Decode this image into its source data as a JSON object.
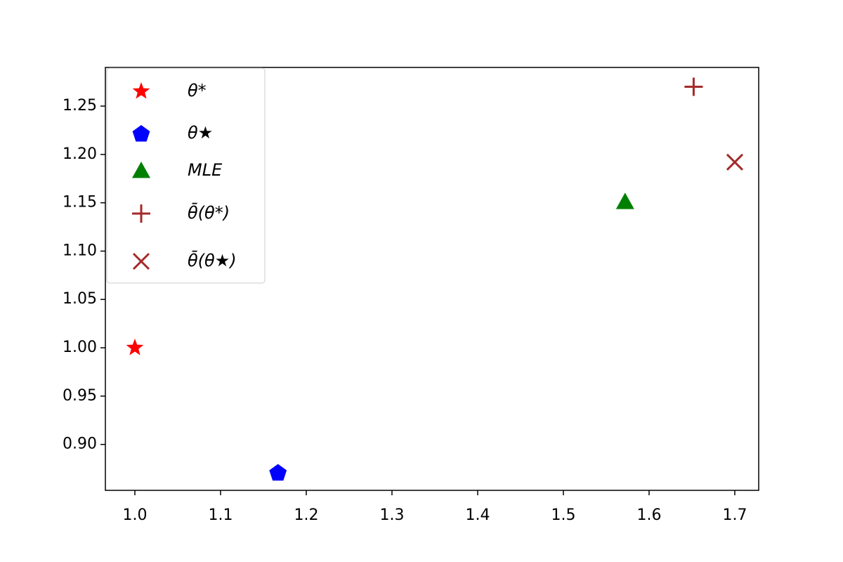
{
  "chart_data": {
    "type": "scatter",
    "xlim": [
      0.9656,
      1.7279
    ],
    "ylim": [
      0.8525,
      1.29
    ],
    "xticks": [
      {
        "value": 1,
        "label": "1.0"
      },
      1.1,
      1.2,
      1.3,
      1.4,
      1.5,
      1.6,
      1.7
    ],
    "yticks": [
      {
        "value": 0.9,
        "label": "0.90"
      },
      0.95,
      {
        "value": 1,
        "label": "1.00"
      },
      1.05,
      {
        "value": 1.1,
        "label": "1.10"
      },
      1.15,
      {
        "value": 1.2,
        "label": "1.20"
      },
      1.25
    ],
    "legend": "upper left",
    "series": [
      {
        "name": "θ*",
        "color": "#ff0000",
        "marker": "star",
        "x": [
          1.0
        ],
        "y": [
          1.0
        ]
      },
      {
        "name": "θ★",
        "color": "#0000ff",
        "marker": "pentagon",
        "x": [
          1.167
        ],
        "y": [
          0.871
        ]
      },
      {
        "name": "MLE",
        "color": "#008000",
        "marker": "triangle",
        "x": [
          1.572
        ],
        "y": [
          1.151
        ]
      },
      {
        "name": "θ̄(θ*)",
        "color": "#a52a2a",
        "marker": "plus",
        "x": [
          1.652
        ],
        "y": [
          1.27
        ]
      },
      {
        "name": "θ̄(θ★)",
        "color": "#a52a2a",
        "marker": "x",
        "x": [
          1.7
        ],
        "y": [
          1.192
        ]
      }
    ]
  }
}
